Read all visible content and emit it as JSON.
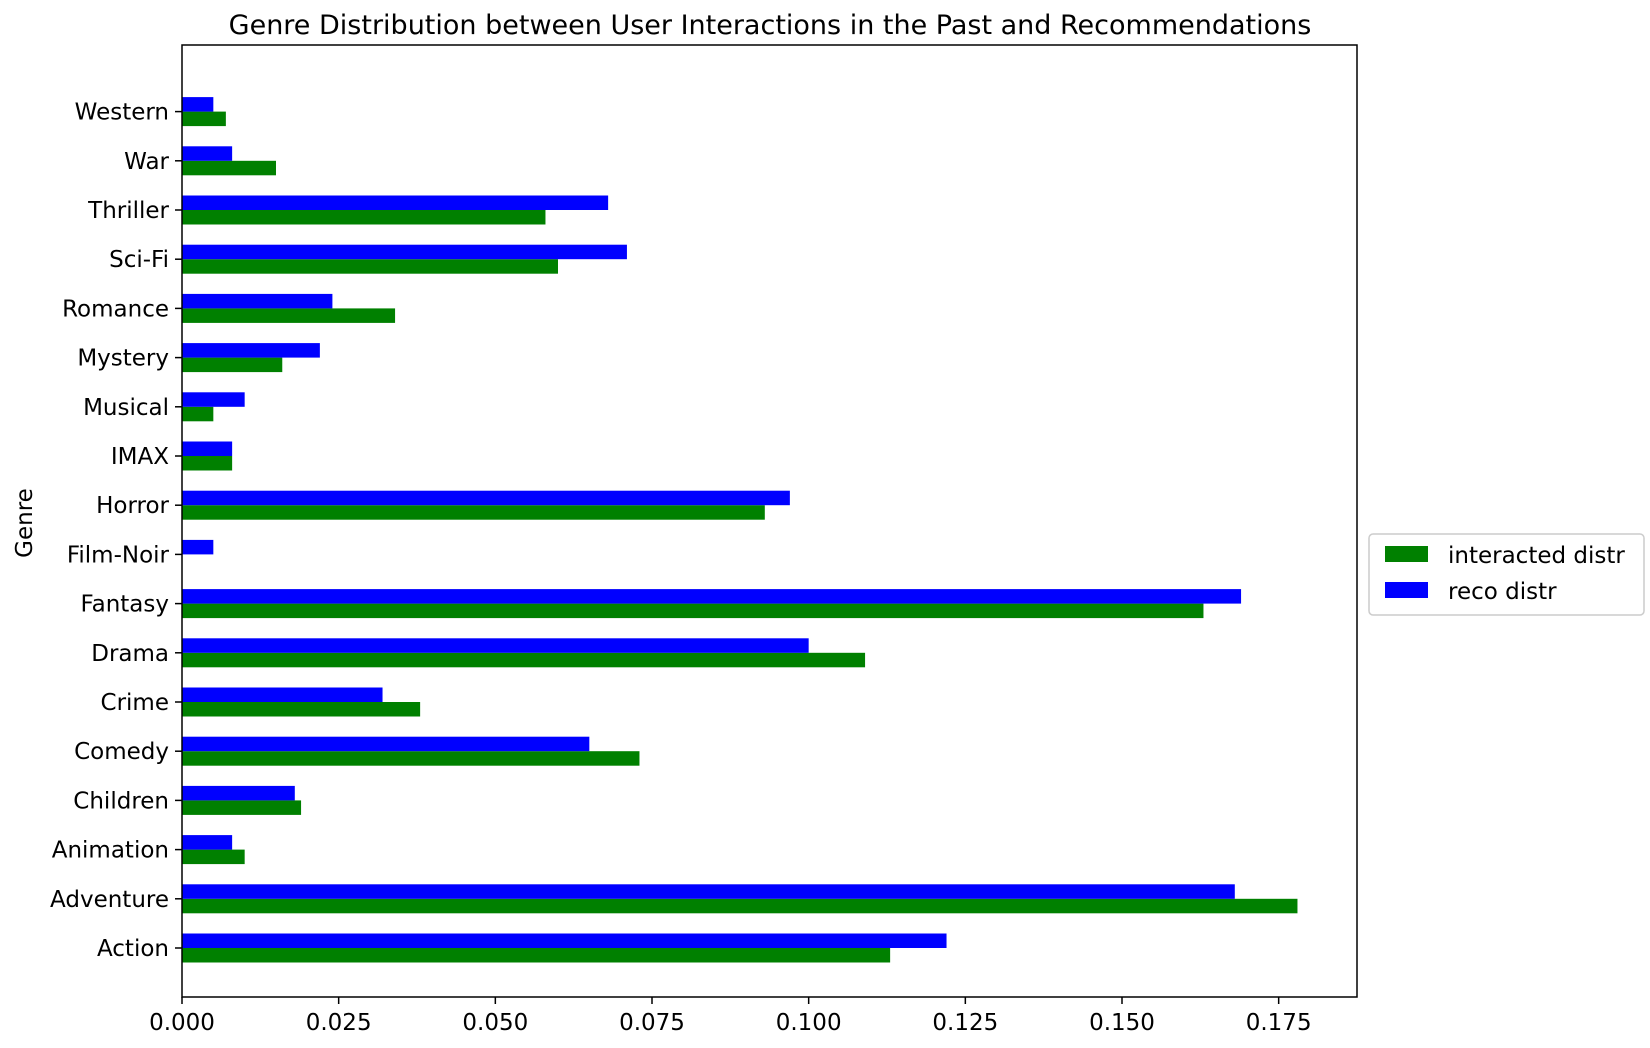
{
  "chart_data": {
    "type": "bar",
    "orientation": "horizontal",
    "title": "Genre Distribution between User Interactions in the Past and Recommendations",
    "ylabel": "Genre",
    "xlabel": "",
    "xlim": [
      0,
      0.1875
    ],
    "x_ticks": [
      "0.000",
      "0.025",
      "0.050",
      "0.075",
      "0.100",
      "0.125",
      "0.150",
      "0.175"
    ],
    "grid": false,
    "legend_position": "right",
    "categories": [
      "Action",
      "Adventure",
      "Animation",
      "Children",
      "Comedy",
      "Crime",
      "Drama",
      "Fantasy",
      "Film-Noir",
      "Horror",
      "IMAX",
      "Musical",
      "Mystery",
      "Romance",
      "Sci-Fi",
      "Thriller",
      "War",
      "Western"
    ],
    "series": [
      {
        "name": "interacted distr",
        "color": "#008000",
        "values": [
          0.113,
          0.178,
          0.01,
          0.019,
          0.073,
          0.038,
          0.109,
          0.163,
          0.0,
          0.093,
          0.008,
          0.005,
          0.016,
          0.034,
          0.06,
          0.058,
          0.015,
          0.007
        ]
      },
      {
        "name": "reco distr",
        "color": "#0000ff",
        "values": [
          0.122,
          0.168,
          0.008,
          0.018,
          0.065,
          0.032,
          0.1,
          0.169,
          0.005,
          0.097,
          0.008,
          0.01,
          0.022,
          0.024,
          0.071,
          0.068,
          0.008,
          0.005
        ]
      }
    ]
  }
}
